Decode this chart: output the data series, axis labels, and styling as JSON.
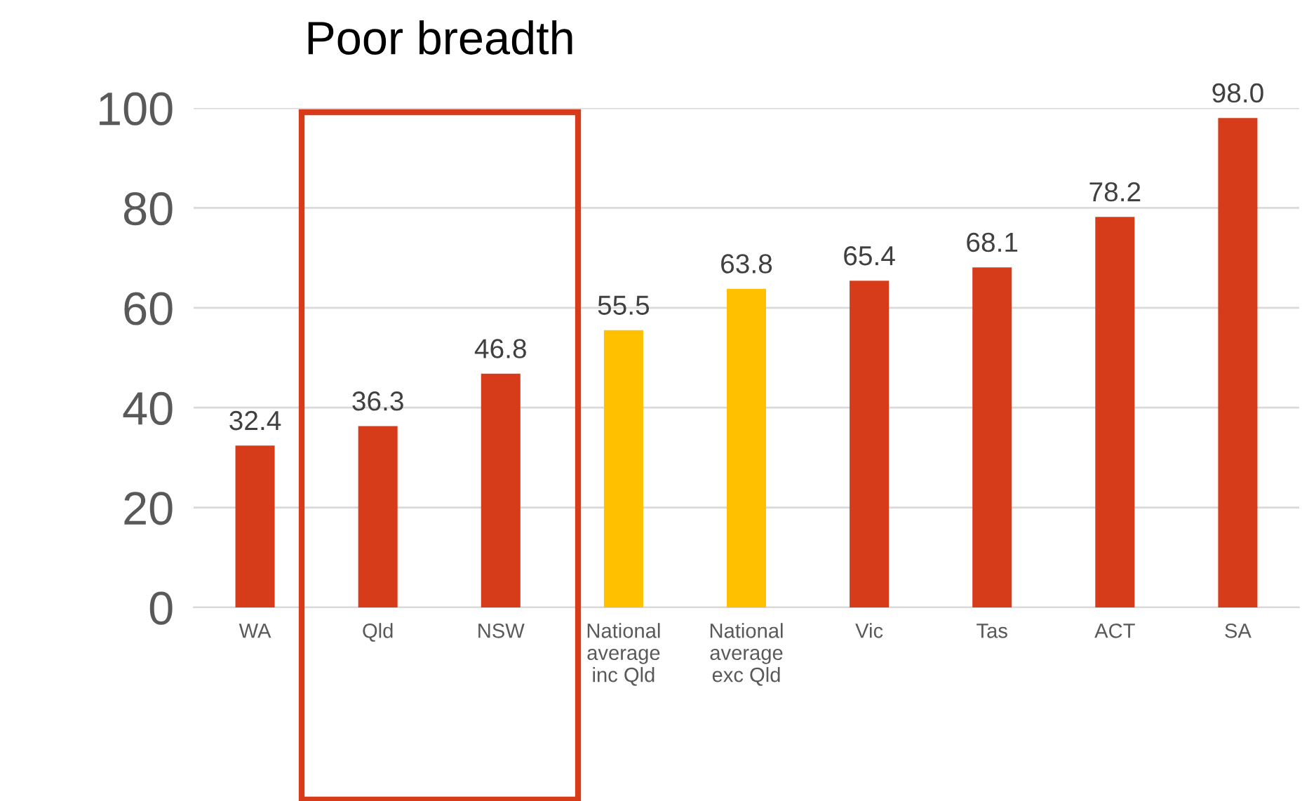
{
  "chart_data": {
    "type": "bar",
    "categories": [
      "WA",
      "Qld",
      "NSW",
      "National\naverage\ninc Qld",
      "National\naverage\nexc Qld",
      "Vic",
      "Tas",
      "ACT",
      "SA"
    ],
    "values": [
      32.4,
      36.3,
      46.8,
      55.5,
      63.8,
      65.4,
      68.1,
      78.2,
      98.0
    ],
    "colors": [
      "#d63c1a",
      "#d63c1a",
      "#d63c1a",
      "#ffc000",
      "#ffc000",
      "#d63c1a",
      "#d63c1a",
      "#d63c1a",
      "#d63c1a"
    ],
    "value_labels": [
      "32.4",
      "36.3",
      "46.8",
      "55.5",
      "63.8",
      "65.4",
      "68.1",
      "78.2",
      "98.0"
    ],
    "ylim": [
      0,
      100
    ],
    "yticks": [
      0,
      20,
      40,
      60,
      80,
      100
    ],
    "grid": "y",
    "annotations": [
      "Poor breadth"
    ]
  }
}
